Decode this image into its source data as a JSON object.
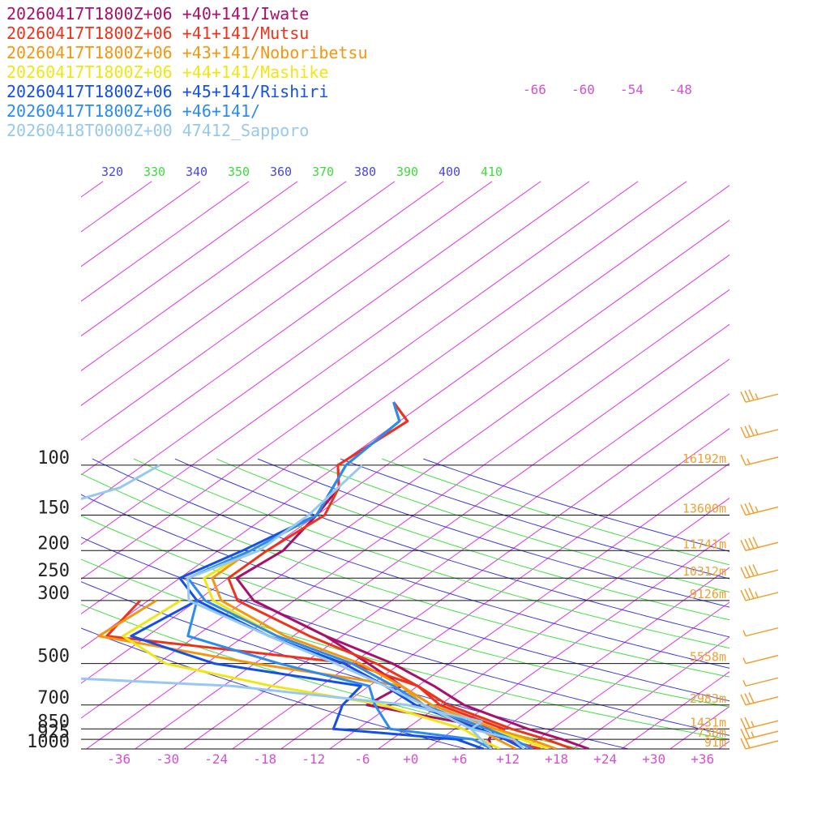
{
  "legend": [
    {
      "label": "20260417T1800Z+06 +40+141/Iwate",
      "color": "#a8106a"
    },
    {
      "label": "20260417T1800Z+06 +41+141/Mutsu",
      "color": "#f0321a"
    },
    {
      "label": "20260417T1800Z+06 +43+141/Noboribetsu",
      "color": "#f5960f"
    },
    {
      "label": "20260417T1800Z+06 +44+141/Mashike",
      "color": "#f0e614"
    },
    {
      "label": "20260417T1800Z+06 +45+141/Rishiri",
      "color": "#1450e6"
    },
    {
      "label": "20260417T1800Z+06 +46+141/",
      "color": "#2a8cf0"
    },
    {
      "label": "20260418T0000Z+00 47412_Sapporo",
      "color": "#96c8f0"
    }
  ],
  "chart_data": {
    "type": "line",
    "skew_t": true,
    "pressure_ticks": [
      "100",
      "150",
      "200",
      "250",
      "300",
      "500",
      "700",
      "850",
      "925",
      "1000"
    ],
    "pressure_levels": [
      100,
      150,
      200,
      250,
      300,
      500,
      700,
      850,
      925,
      1000
    ],
    "temperature_ticks": [
      "-36",
      "-30",
      "-24",
      "-18",
      "-12",
      "-6",
      "+0",
      "+6",
      "+12",
      "+18",
      "+24",
      "+30",
      "+36"
    ],
    "temperature_values": [
      -36,
      -30,
      -24,
      -18,
      -12,
      -6,
      0,
      6,
      12,
      18,
      24,
      30,
      36
    ],
    "top_isotherm_ticks": [
      "-66",
      "-60",
      "-54",
      "-48"
    ],
    "theta_ticks": [
      "320",
      "330",
      "340",
      "350",
      "360",
      "370",
      "380",
      "390",
      "400",
      "410"
    ],
    "theta_values": [
      320,
      330,
      340,
      350,
      360,
      370,
      380,
      390,
      400,
      410
    ],
    "height_labels": [
      {
        "p": 100,
        "text": "16192m"
      },
      {
        "p": 150,
        "text": "13600m"
      },
      {
        "p": 200,
        "text": "11741m"
      },
      {
        "p": 250,
        "text": "10312m"
      },
      {
        "p": 300,
        "text": "9126m"
      },
      {
        "p": 500,
        "text": "5558m"
      },
      {
        "p": 700,
        "text": "2983m"
      },
      {
        "p": 850,
        "text": "1431m"
      },
      {
        "p": 925,
        "text": "738m"
      },
      {
        "p": 1000,
        "text": "91m"
      }
    ],
    "series": [
      {
        "name": "20260417T1800Z+06 +40+141/Iwate",
        "color": "#a8106a",
        "temperature": [
          [
            60,
            -62
          ],
          [
            70,
            -57
          ],
          [
            100,
            -58
          ],
          [
            120,
            -54
          ],
          [
            150,
            -52
          ],
          [
            200,
            -50
          ],
          [
            250,
            -51
          ],
          [
            300,
            -45
          ],
          [
            400,
            -30
          ],
          [
            500,
            -17
          ],
          [
            600,
            -8
          ],
          [
            700,
            -1
          ],
          [
            850,
            11
          ],
          [
            925,
            17
          ],
          [
            1000,
            22
          ]
        ],
        "dewpoint": [
          [
            300,
            -45
          ],
          [
            400,
            -30
          ],
          [
            500,
            -20
          ],
          [
            600,
            -12
          ],
          [
            700,
            -13
          ],
          [
            850,
            7
          ],
          [
            925,
            8
          ],
          [
            1000,
            10
          ]
        ]
      },
      {
        "name": "20260417T1800Z+06 +41+141/Mutsu",
        "color": "#f0321a",
        "temperature": [
          [
            60,
            -62
          ],
          [
            70,
            -57
          ],
          [
            100,
            -58
          ],
          [
            120,
            -54
          ],
          [
            150,
            -51
          ],
          [
            200,
            -52
          ],
          [
            250,
            -52
          ],
          [
            300,
            -47
          ],
          [
            400,
            -32
          ],
          [
            500,
            -19
          ],
          [
            600,
            -10
          ],
          [
            700,
            -3
          ],
          [
            850,
            9
          ],
          [
            925,
            15
          ],
          [
            1000,
            20
          ]
        ],
        "dewpoint": [
          [
            300,
            -59
          ],
          [
            400,
            -57
          ],
          [
            500,
            -22
          ],
          [
            600,
            -10
          ],
          [
            700,
            -4
          ],
          [
            850,
            8
          ],
          [
            925,
            10
          ],
          [
            1000,
            16
          ]
        ]
      },
      {
        "name": "20260417T1800Z+06 +43+141/Noboribetsu",
        "color": "#f5960f",
        "temperature": [
          [
            60,
            -62
          ],
          [
            70,
            -58
          ],
          [
            100,
            -57
          ],
          [
            150,
            -52
          ],
          [
            200,
            -54
          ],
          [
            250,
            -54
          ],
          [
            300,
            -49
          ],
          [
            400,
            -35
          ],
          [
            500,
            -21
          ],
          [
            600,
            -12
          ],
          [
            700,
            -5
          ],
          [
            850,
            7
          ],
          [
            925,
            13
          ],
          [
            1000,
            18
          ]
        ],
        "dewpoint": [
          [
            300,
            -57
          ],
          [
            400,
            -58
          ],
          [
            500,
            -34
          ],
          [
            600,
            -12
          ],
          [
            700,
            -6
          ],
          [
            850,
            5
          ],
          [
            925,
            9
          ],
          [
            1000,
            13
          ]
        ]
      },
      {
        "name": "20260417T1800Z+06 +44+141/Mashike",
        "color": "#f0e614",
        "temperature": [
          [
            60,
            -62
          ],
          [
            70,
            -58
          ],
          [
            100,
            -57
          ],
          [
            150,
            -52
          ],
          [
            200,
            -54
          ],
          [
            250,
            -55
          ],
          [
            300,
            -50
          ],
          [
            400,
            -36
          ],
          [
            500,
            -22
          ],
          [
            600,
            -13
          ],
          [
            700,
            -6
          ],
          [
            850,
            6
          ],
          [
            925,
            12
          ],
          [
            1000,
            17
          ]
        ],
        "dewpoint": [
          [
            300,
            -54
          ],
          [
            400,
            -55
          ],
          [
            500,
            -45
          ],
          [
            600,
            -28
          ],
          [
            700,
            -11
          ],
          [
            850,
            3
          ],
          [
            925,
            7
          ],
          [
            1000,
            11
          ]
        ]
      },
      {
        "name": "20260417T1800Z+06 +45+141/Rishiri",
        "color": "#1450e6",
        "temperature": [
          [
            60,
            -62
          ],
          [
            70,
            -58
          ],
          [
            100,
            -57
          ],
          [
            150,
            -52
          ],
          [
            200,
            -55
          ],
          [
            250,
            -58
          ],
          [
            300,
            -52
          ],
          [
            400,
            -37
          ],
          [
            500,
            -23
          ],
          [
            600,
            -14
          ],
          [
            700,
            -7
          ],
          [
            850,
            5
          ],
          [
            925,
            10
          ],
          [
            1000,
            14
          ]
        ],
        "dewpoint": [
          [
            300,
            -52
          ],
          [
            400,
            -54
          ],
          [
            500,
            -39
          ],
          [
            600,
            -17
          ],
          [
            700,
            -16
          ],
          [
            850,
            -13
          ],
          [
            925,
            4
          ],
          [
            1000,
            9
          ]
        ]
      },
      {
        "name": "20260417T1800Z+06 +46+141/",
        "color": "#2a8cf0",
        "temperature": [
          [
            60,
            -62
          ],
          [
            70,
            -58
          ],
          [
            100,
            -57
          ],
          [
            150,
            -52
          ],
          [
            200,
            -54
          ],
          [
            250,
            -57
          ],
          [
            300,
            -51
          ],
          [
            400,
            -36
          ],
          [
            500,
            -22
          ],
          [
            600,
            -13
          ],
          [
            700,
            -6
          ],
          [
            850,
            6
          ],
          [
            925,
            11
          ],
          [
            1000,
            15
          ]
        ],
        "dewpoint": [
          [
            300,
            -52
          ],
          [
            400,
            -47
          ],
          [
            500,
            -31
          ],
          [
            600,
            -16
          ],
          [
            700,
            -12
          ],
          [
            850,
            -6
          ],
          [
            925,
            6
          ],
          [
            1000,
            10
          ]
        ]
      },
      {
        "name": "20260418T0000Z+00 47412_Sapporo",
        "color": "#96c8f0",
        "temperature": [
          [
            100,
            -55
          ],
          [
            150,
            -53
          ],
          [
            200,
            -53
          ],
          [
            250,
            -57
          ],
          [
            300,
            -53
          ],
          [
            400,
            -37
          ],
          [
            500,
            -24
          ],
          [
            600,
            -14
          ],
          [
            700,
            -6
          ],
          [
            850,
            4
          ],
          [
            925,
            11
          ],
          [
            1000,
            14
          ]
        ],
        "dewpoint": [
          [
            100,
            -80
          ],
          [
            120,
            -81
          ],
          [
            150,
            -88
          ],
          [
            180,
            -90
          ],
          [
            200,
            -84
          ],
          [
            250,
            -80
          ],
          [
            300,
            -76
          ],
          [
            350,
            -68
          ],
          [
            400,
            -66
          ],
          [
            500,
            -69
          ],
          [
            520,
            -60
          ],
          [
            540,
            -68
          ],
          [
            600,
            -33
          ],
          [
            700,
            -8
          ],
          [
            800,
            4
          ],
          [
            850,
            4
          ],
          [
            925,
            7
          ],
          [
            1000,
            10
          ]
        ]
      }
    ],
    "wind_barbs": [
      {
        "p": 60,
        "kt": 35
      },
      {
        "p": 80,
        "kt": 35
      },
      {
        "p": 100,
        "kt": 15
      },
      {
        "p": 150,
        "kt": 35
      },
      {
        "p": 200,
        "kt": 40
      },
      {
        "p": 250,
        "kt": 40
      },
      {
        "p": 300,
        "kt": 35
      },
      {
        "p": 400,
        "kt": 5
      },
      {
        "p": 500,
        "kt": 5
      },
      {
        "p": 600,
        "kt": 5
      },
      {
        "p": 700,
        "kt": 30
      },
      {
        "p": 850,
        "kt": 25
      },
      {
        "p": 925,
        "kt": 25
      },
      {
        "p": 1000,
        "kt": 20
      }
    ],
    "axis_colors": {
      "isotherm": "#e030e0",
      "isobar": "#111111",
      "dry_adiabat": "#3a3ae0",
      "moist_adiabat": "#40e040",
      "tick": "#d450d4",
      "height": "#f0a030",
      "barb": "#f0a030"
    }
  }
}
